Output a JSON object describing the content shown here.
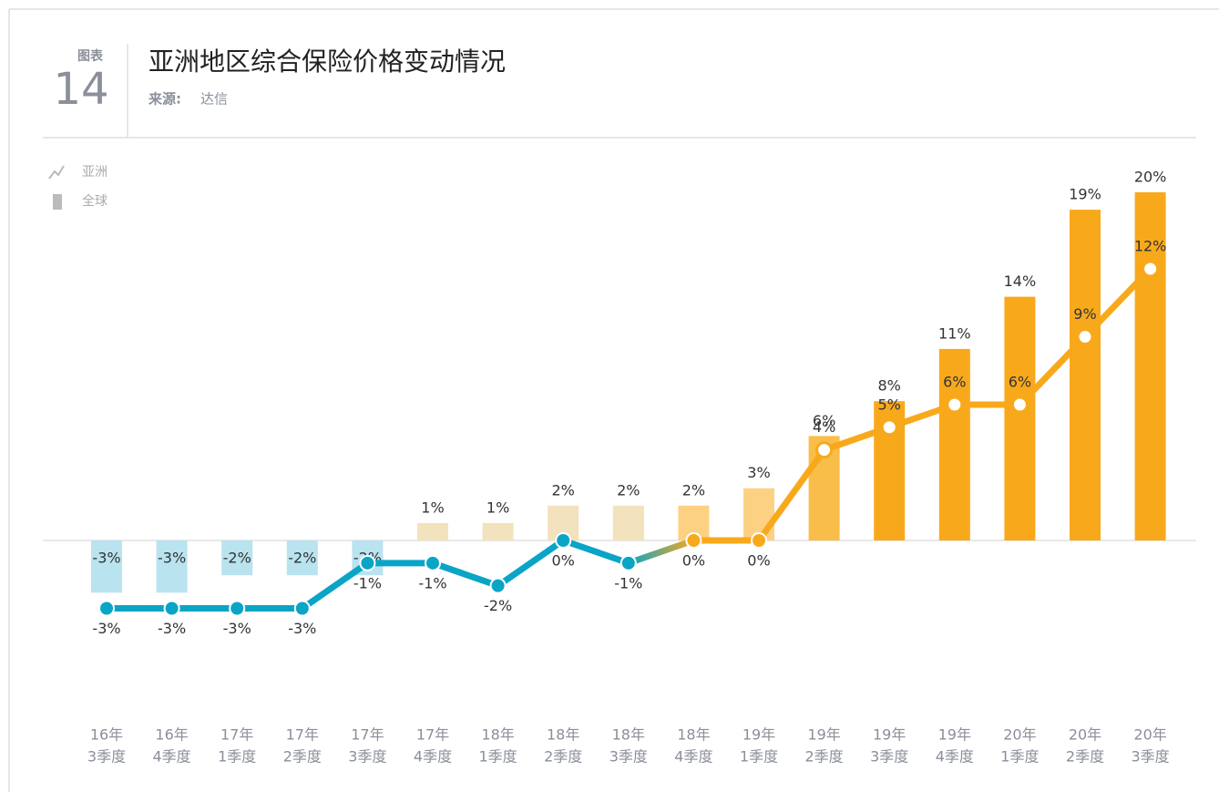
{
  "header": {
    "tag": "图表",
    "number": "14",
    "title": "亚洲地区综合保险价格变动情况",
    "source_label": "来源:",
    "source": "达信"
  },
  "chart_data": {
    "type": "bar-line",
    "categories": [
      [
        "16年",
        "3季度"
      ],
      [
        "16年",
        "4季度"
      ],
      [
        "17年",
        "1季度"
      ],
      [
        "17年",
        "2季度"
      ],
      [
        "17年",
        "3季度"
      ],
      [
        "17年",
        "4季度"
      ],
      [
        "18年",
        "1季度"
      ],
      [
        "18年",
        "2季度"
      ],
      [
        "18年",
        "3季度"
      ],
      [
        "18年",
        "4季度"
      ],
      [
        "19年",
        "1季度"
      ],
      [
        "19年",
        "2季度"
      ],
      [
        "19年",
        "3季度"
      ],
      [
        "19年",
        "4季度"
      ],
      [
        "20年",
        "1季度"
      ],
      [
        "20年",
        "2季度"
      ],
      [
        "20年",
        "3季度"
      ]
    ],
    "series": [
      {
        "name": "全球",
        "kind": "bar",
        "legend_color": "#bbbbbb",
        "colors": [
          "#b9e3ef",
          "#b9e3ef",
          "#b9e3ef",
          "#b9e3ef",
          "#b9e3ef",
          "#f2e2bd",
          "#f2e2bd",
          "#f2e2bd",
          "#f2e2bd",
          "#fdd183",
          "#fdd183",
          "#f9bd4a",
          "#f8a91b",
          "#f8a91b",
          "#f8a91b",
          "#f8a91b",
          "#f8a91b"
        ],
        "values": [
          -3,
          -3,
          -2,
          -2,
          -2,
          1,
          1,
          2,
          2,
          2,
          3,
          6,
          8,
          11,
          14,
          19,
          20
        ],
        "value_labels": [
          "-3%",
          "-3%",
          "-2%",
          "-2%",
          "-2%",
          "1%",
          "1%",
          "2%",
          "2%",
          "2%",
          "3%",
          "6%",
          "8%",
          "11%",
          "14%",
          "19%",
          "20%"
        ]
      },
      {
        "name": "亚洲",
        "kind": "line",
        "legend_color": "#bbbbbb",
        "colors": [
          "#0aa5c6",
          "#0aa5c6",
          "#0aa5c6",
          "#0aa5c6",
          "#0aa5c6",
          "#0aa5c6",
          "#0aa5c6",
          "#0aa5c6",
          "#0aa5c6",
          "#f8a91b",
          "#f8a91b",
          "#f8a91b",
          "#f8a91b",
          "#f8a91b",
          "#f8a91b",
          "#f8a91b",
          "#f8a91b"
        ],
        "marker_fills": [
          "#0aa5c6",
          "#0aa5c6",
          "#0aa5c6",
          "#0aa5c6",
          "#0aa5c6",
          "#0aa5c6",
          "#0aa5c6",
          "#0aa5c6",
          "#0aa5c6",
          "#f8a91b",
          "#f8a91b",
          "#ffffff",
          "#ffffff",
          "#ffffff",
          "#ffffff",
          "#ffffff",
          "#ffffff"
        ],
        "values": [
          -3,
          -3,
          -3,
          -3,
          -1,
          -1,
          -2,
          0,
          -1,
          0,
          0,
          4,
          5,
          6,
          6,
          9,
          12
        ],
        "value_labels": [
          "-3%",
          "-3%",
          "-3%",
          "-3%",
          "-1%",
          "-1%",
          "-2%",
          "0%",
          "-1%",
          "0%",
          "0%",
          "4%",
          "5%",
          "6%",
          "6%",
          "9%",
          "12%"
        ]
      }
    ]
  }
}
